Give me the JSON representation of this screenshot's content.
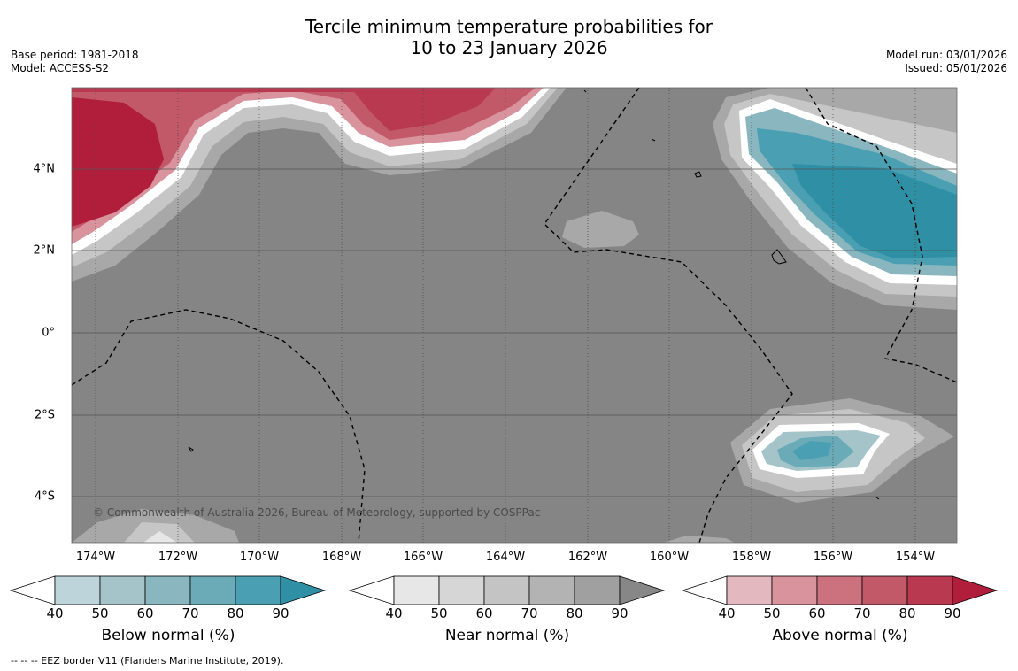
{
  "title_line1": "Tercile minimum temperature probabilities for",
  "title_line2": "10 to 23 January 2026",
  "base_period": "Base period: 1981-2018",
  "model": "Model: ACCESS-S2",
  "model_run": "Model run: 03/01/2026",
  "issued": "Issued: 05/01/2026",
  "lat_labels": [
    "4°N",
    "2°N",
    "0°",
    "2°S",
    "4°S"
  ],
  "lon_labels": [
    "174°W",
    "172°W",
    "170°W",
    "168°W",
    "166°W",
    "164°W",
    "162°W",
    "160°W",
    "158°W",
    "156°W",
    "154°W"
  ],
  "copyright": "© Commonwealth of Australia 2026, Bureau of Meteorology, supported by COSPPac",
  "colorbars": [
    {
      "label": "Below normal (%)",
      "ticks": [
        "40",
        "50",
        "60",
        "70",
        "80",
        "90"
      ],
      "colors": [
        "#bdd4da",
        "#a4c4ca",
        "#89b6bf",
        "#6babb8",
        "#4aa0b2",
        "#2e8fa5"
      ]
    },
    {
      "label": "Near normal (%)",
      "ticks": [
        "40",
        "50",
        "60",
        "70",
        "80",
        "90"
      ],
      "colors": [
        "#e7e7e7",
        "#d6d6d6",
        "#c4c4c4",
        "#b3b3b3",
        "#a0a0a0",
        "#878787"
      ]
    },
    {
      "label": "Above normal (%)",
      "ticks": [
        "40",
        "50",
        "60",
        "70",
        "80",
        "90"
      ],
      "colors": [
        "#e4b8bf",
        "#d8939d",
        "#cc727f",
        "#c25968",
        "#b93a50",
        "#b01e3b"
      ]
    }
  ],
  "eez_note": "--  --  -- EEZ border V11 (Flanders Marine Institute, 2019)."
}
